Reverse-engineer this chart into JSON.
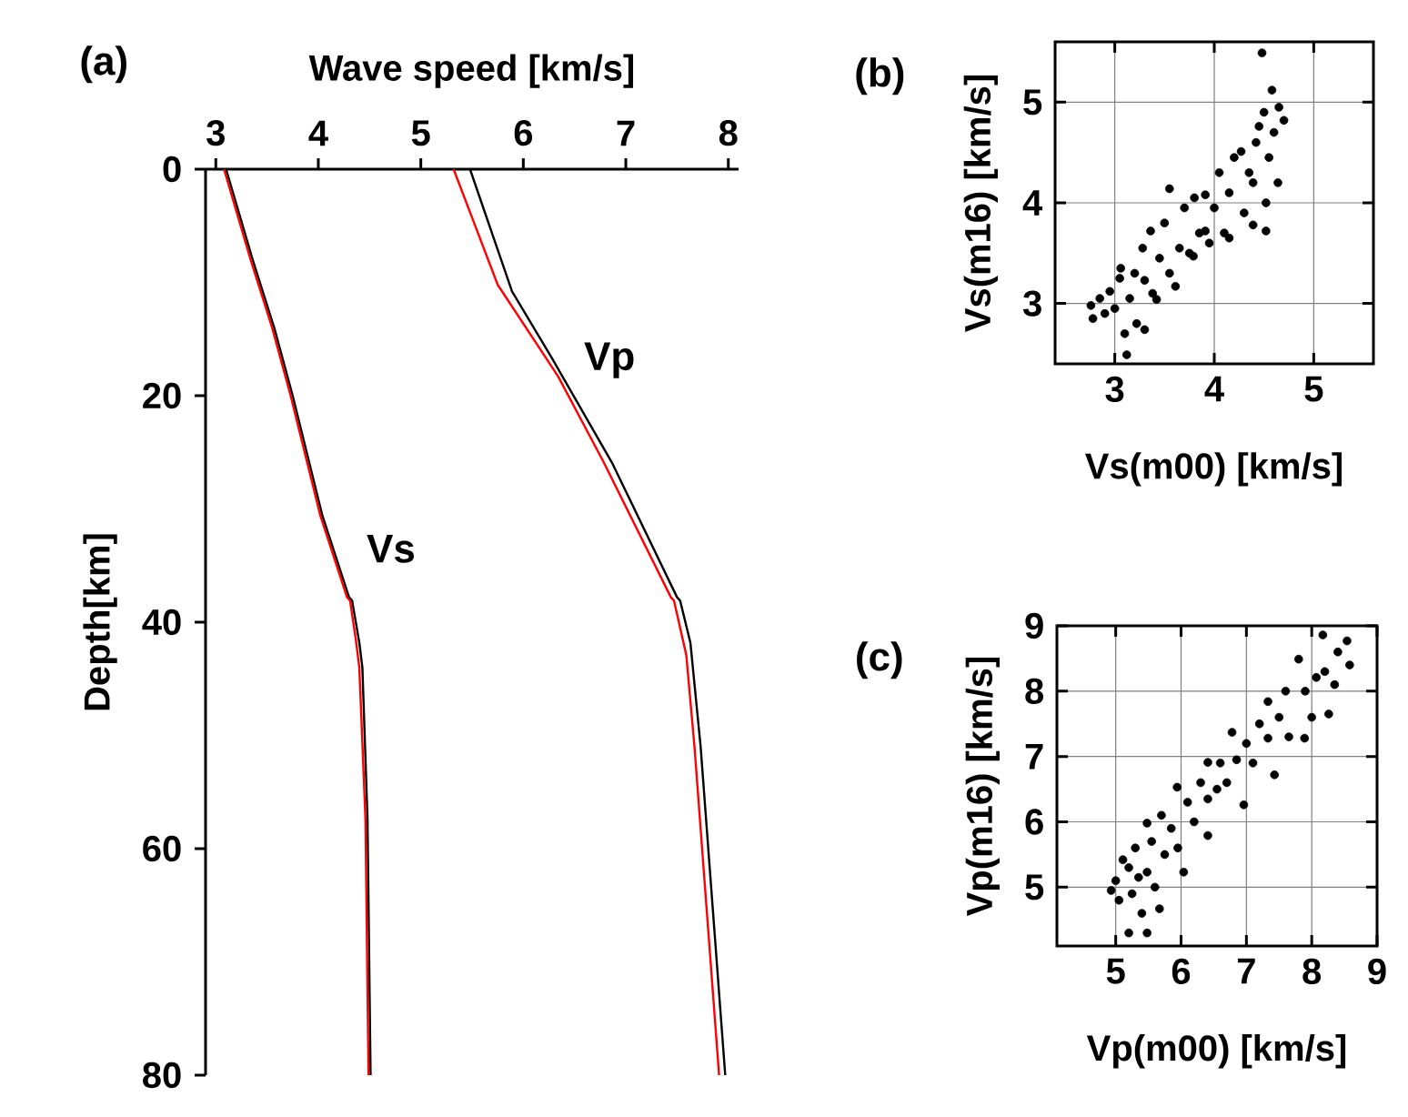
{
  "chart_data": [
    {
      "type": "line",
      "xlabel": "Wave speed [km/s]",
      "ylabel": "Depth[km]",
      "xlim": [
        2.9,
        8.1
      ],
      "ylim": [
        80,
        0
      ],
      "xticks": [
        3,
        4,
        5,
        6,
        7,
        8
      ],
      "yticks": [
        0,
        20,
        40,
        60,
        80
      ],
      "annotations": [
        "(a)",
        "Vp",
        "Vs"
      ],
      "series": [
        {
          "color": "#000000",
          "x": [
            3.1,
            3.36,
            3.57,
            3.75,
            4.04,
            4.3,
            4.33,
            4.4,
            4.43,
            4.48,
            4.51
          ],
          "values": [
            0,
            8,
            14,
            20,
            30.6,
            37.8,
            38.1,
            41.8,
            44,
            57.4,
            80
          ]
        },
        {
          "color": "#ff0000",
          "x": [
            3.08,
            3.34,
            3.55,
            3.73,
            4.02,
            4.28,
            4.31,
            4.37,
            4.4,
            4.46,
            4.49
          ],
          "values": [
            0,
            8,
            14,
            20,
            30.6,
            37.8,
            38.1,
            41.8,
            44,
            57.4,
            80
          ]
        },
        {
          "color": "#000000",
          "x": [
            5.48,
            5.89,
            6.28,
            6.87,
            7.5,
            7.53,
            7.63,
            7.73,
            7.97
          ],
          "values": [
            0,
            10.8,
            16.7,
            26,
            37.8,
            38.1,
            41.8,
            51,
            80
          ]
        },
        {
          "color": "#ff0000",
          "x": [
            5.32,
            5.75,
            6.34,
            6.78,
            7.44,
            7.47,
            7.59,
            7.67,
            7.91
          ],
          "values": [
            0,
            10.2,
            18.3,
            25.8,
            37.8,
            38.1,
            42.9,
            51,
            80
          ]
        }
      ]
    },
    {
      "type": "scatter",
      "xlabel": "Vs(m00) [km/s]",
      "ylabel": "Vs(m16) [km/s]",
      "xlim": [
        2.4,
        5.6
      ],
      "ylim": [
        2.4,
        5.6
      ],
      "xticks": [
        3,
        4,
        5
      ],
      "yticks": [
        3,
        4,
        5
      ],
      "grid": true,
      "color": "#000000",
      "annotations": [
        "(b)"
      ],
      "x": [
        2.76,
        2.78,
        2.85,
        2.9,
        2.95,
        3.0,
        3.05,
        3.06,
        3.1,
        3.12,
        3.15,
        3.2,
        3.22,
        3.28,
        3.3,
        3.3,
        3.36,
        3.38,
        3.42,
        3.45,
        3.5,
        3.55,
        3.55,
        3.61,
        3.65,
        3.7,
        3.75,
        3.79,
        3.8,
        3.85,
        3.91,
        3.91,
        3.95,
        4.0,
        4.05,
        4.1,
        4.15,
        4.15,
        4.2,
        4.27,
        4.3,
        4.35,
        4.39,
        4.39,
        4.42,
        4.45,
        4.48,
        4.5,
        4.52,
        4.52,
        4.55,
        4.58,
        4.6,
        4.64,
        4.65,
        4.7
      ],
      "values": [
        2.98,
        2.85,
        3.05,
        2.9,
        3.12,
        2.95,
        3.25,
        3.35,
        2.7,
        2.49,
        3.05,
        3.3,
        2.8,
        3.55,
        3.23,
        2.74,
        3.72,
        3.1,
        3.04,
        3.45,
        3.8,
        4.14,
        3.3,
        3.17,
        3.55,
        3.95,
        3.5,
        3.47,
        4.05,
        3.7,
        4.08,
        3.72,
        3.6,
        3.95,
        4.3,
        3.7,
        3.65,
        4.1,
        4.45,
        4.51,
        3.9,
        4.3,
        3.78,
        4.2,
        4.6,
        4.76,
        5.49,
        4.9,
        3.72,
        4.0,
        4.45,
        5.12,
        4.7,
        4.2,
        4.95,
        4.82
      ]
    },
    {
      "type": "scatter",
      "xlabel": "Vp(m00) [km/s]",
      "ylabel": "Vp(m16) [km/s]",
      "xlim": [
        4.1,
        9
      ],
      "ylim": [
        4.1,
        9
      ],
      "xticks": [
        5,
        6,
        7,
        8,
        9
      ],
      "yticks": [
        5,
        6,
        7,
        8,
        9
      ],
      "grid": true,
      "color": "#000000",
      "annotations": [
        "(c)"
      ],
      "x": [
        4.93,
        5.0,
        5.05,
        5.11,
        5.2,
        5.2,
        5.25,
        5.3,
        5.35,
        5.4,
        5.48,
        5.48,
        5.48,
        5.55,
        5.6,
        5.67,
        5.7,
        5.75,
        5.85,
        5.94,
        5.95,
        6.04,
        6.1,
        6.2,
        6.3,
        6.41,
        6.41,
        6.41,
        6.55,
        6.6,
        6.7,
        6.78,
        6.85,
        6.96,
        7.0,
        7.1,
        7.2,
        7.33,
        7.33,
        7.43,
        7.5,
        7.6,
        7.65,
        7.8,
        7.89,
        7.9,
        8.0,
        8.07,
        8.17,
        8.2,
        8.26,
        8.35,
        8.4,
        8.54,
        8.58
      ],
      "values": [
        4.95,
        5.1,
        4.8,
        5.42,
        4.3,
        5.3,
        4.9,
        5.6,
        5.15,
        4.6,
        5.98,
        5.23,
        4.3,
        5.7,
        5.0,
        4.67,
        6.1,
        5.5,
        5.9,
        6.53,
        5.6,
        5.23,
        6.3,
        6.0,
        6.6,
        6.91,
        6.35,
        5.79,
        6.5,
        6.9,
        6.6,
        7.37,
        6.95,
        6.26,
        7.2,
        6.9,
        7.5,
        7.84,
        7.28,
        6.72,
        7.6,
        8.0,
        7.3,
        8.49,
        7.28,
        8.0,
        7.6,
        8.21,
        8.86,
        8.3,
        7.65,
        8.1,
        8.6,
        8.77,
        8.4
      ]
    }
  ]
}
